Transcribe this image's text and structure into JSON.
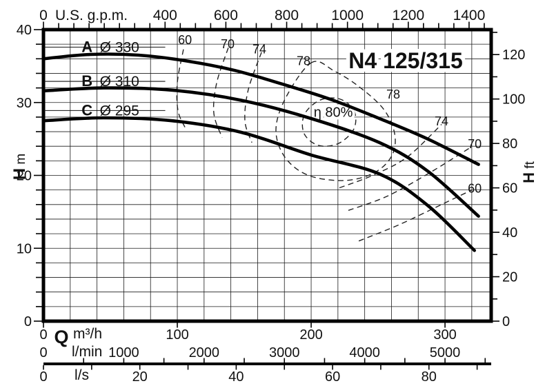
{
  "title": "N4 125/315",
  "chart_data": {
    "type": "line",
    "title": "N4 125/315",
    "xlim_m3h": [
      0,
      334.5
    ],
    "ylim_m": [
      0,
      40
    ],
    "grid": {
      "x_step_m3h": 20,
      "y_step_m": 2
    },
    "x_axes": {
      "gpm": {
        "label": "U.S. g.p.m.",
        "majors": [
          0,
          400,
          600,
          800,
          1000,
          1200,
          1400
        ],
        "minor_step": 50,
        "per_m3h": 4.4029
      },
      "m3h": {
        "prefix": "Q",
        "label": "m³/h",
        "majors": [
          0,
          100,
          200,
          300
        ],
        "per_m3h": 1
      },
      "lmin": {
        "label": "l/min",
        "majors": [
          0,
          1000,
          2000,
          3000,
          4000,
          5000
        ],
        "minor_step": 500,
        "per_m3h": 16.6667
      },
      "ls": {
        "label": "l/s",
        "majors": [
          0,
          20,
          40,
          60,
          80
        ],
        "minor_step": 10,
        "per_m3h": 0.27778
      }
    },
    "y_axes": {
      "m": {
        "label_main": "H",
        "label_unit": "m",
        "majors": [
          0,
          10,
          20,
          30,
          40
        ],
        "minor_step": 2,
        "per_m": 1
      },
      "ft": {
        "label_main": "H",
        "label_unit": "ft",
        "majors": [
          0,
          20,
          40,
          60,
          80,
          100,
          120
        ],
        "minor_step": 10,
        "per_m": 3.2808
      }
    },
    "curves": [
      {
        "name": "A",
        "diameter": "Ø 330",
        "label_q": 50,
        "label_h": 37.6,
        "points": [
          [
            0,
            36.0
          ],
          [
            35,
            36.6
          ],
          [
            71,
            36.5
          ],
          [
            107,
            35.7
          ],
          [
            143,
            34.4
          ],
          [
            179,
            32.5
          ],
          [
            215,
            30.4
          ],
          [
            251,
            27.8
          ],
          [
            287,
            25.0
          ],
          [
            325,
            21.5
          ]
        ]
      },
      {
        "name": "B",
        "diameter": "Ø 310",
        "label_q": 50,
        "label_h": 32.9,
        "points": [
          [
            0,
            31.6
          ],
          [
            45,
            32.0
          ],
          [
            96,
            31.7
          ],
          [
            148,
            30.3
          ],
          [
            200,
            27.8
          ],
          [
            251,
            24.5
          ],
          [
            287,
            20.6
          ],
          [
            325,
            14.4
          ]
        ]
      },
      {
        "name": "C",
        "diameter": "Ø 295",
        "label_q": 50,
        "label_h": 28.9,
        "points": [
          [
            0,
            27.5
          ],
          [
            45,
            27.9
          ],
          [
            96,
            27.5
          ],
          [
            148,
            25.9
          ],
          [
            200,
            22.8
          ],
          [
            251,
            20.2
          ],
          [
            287,
            15.9
          ],
          [
            322,
            9.7
          ]
        ]
      }
    ],
    "efficiency": {
      "bep_label": "η 80%",
      "bep_label_pos": [
        216.5,
        28.7
      ],
      "contours": [
        {
          "label": "60",
          "label_pos": [
            105.7,
            38.6
          ],
          "closed": false,
          "points": [
            [
              104.6,
              37.3
            ],
            [
              100.0,
              32.7
            ],
            [
              100.5,
              28.9
            ],
            [
              105.7,
              26.6
            ]
          ]
        },
        {
          "label": "70",
          "label_pos": [
            137.6,
            38.0
          ],
          "closed": false,
          "points": [
            [
              138.1,
              37.5
            ],
            [
              129.4,
              32.7
            ],
            [
              127.3,
              28.5
            ],
            [
              133.5,
              25.2
            ]
          ]
        },
        {
          "label": "74",
          "label_pos": [
            161.3,
            37.3
          ],
          "closed": false,
          "points": [
            [
              162.9,
              36.9
            ],
            [
              153.1,
              31.8
            ],
            [
              150.5,
              27.5
            ],
            [
              155.7,
              24.5
            ]
          ]
        },
        {
          "label": "78",
          "label_pos": [
            194.3,
            35.7
          ],
          "closed": true,
          "points": [
            [
              200.5,
              35.5
            ],
            [
              181.4,
              30.8
            ],
            [
              173.7,
              26.3
            ],
            [
              180.4,
              22.5
            ],
            [
              198.0,
              20.0
            ],
            [
              225.3,
              19.3
            ],
            [
              247.4,
              20.4
            ],
            [
              260.3,
              22.7
            ],
            [
              262.4,
              25.7
            ],
            [
              254.1,
              29.1
            ],
            [
              235.6,
              32.2
            ],
            [
              217.5,
              34.3
            ]
          ]
        },
        {
          "label": "",
          "label_pos": null,
          "closed": true,
          "points": [
            [
              232.0,
              28.9
            ],
            [
              232.0,
              26.4
            ],
            [
              220.6,
              24.4
            ],
            [
              205.7,
              24.1
            ],
            [
              194.8,
              25.7
            ],
            [
              194.8,
              28.3
            ],
            [
              206.2,
              30.3
            ],
            [
              221.1,
              30.5
            ]
          ]
        },
        {
          "label": "78",
          "label_pos": [
            261.3,
            31.1
          ],
          "closed": false,
          "label_only": true,
          "points": []
        },
        {
          "label": "74",
          "label_pos": [
            297.4,
            27.4
          ],
          "closed": false,
          "points": [
            [
              221.1,
              18.3
            ],
            [
              245.9,
              20.0
            ],
            [
              271.6,
              22.5
            ],
            [
              297.4,
              27.0
            ]
          ]
        },
        {
          "label": "70",
          "label_pos": [
            322.2,
            24.3
          ],
          "closed": false,
          "points": [
            [
              227.8,
              15.2
            ],
            [
              256.2,
              17.1
            ],
            [
              287.1,
              20.2
            ],
            [
              319.6,
              23.9
            ]
          ]
        },
        {
          "label": "60",
          "label_pos": [
            322.2,
            18.2
          ],
          "closed": false,
          "points": [
            [
              235.6,
              11.0
            ],
            [
              266.5,
              13.3
            ],
            [
              297.4,
              16.0
            ],
            [
              320.1,
              18.0
            ]
          ]
        }
      ]
    }
  }
}
